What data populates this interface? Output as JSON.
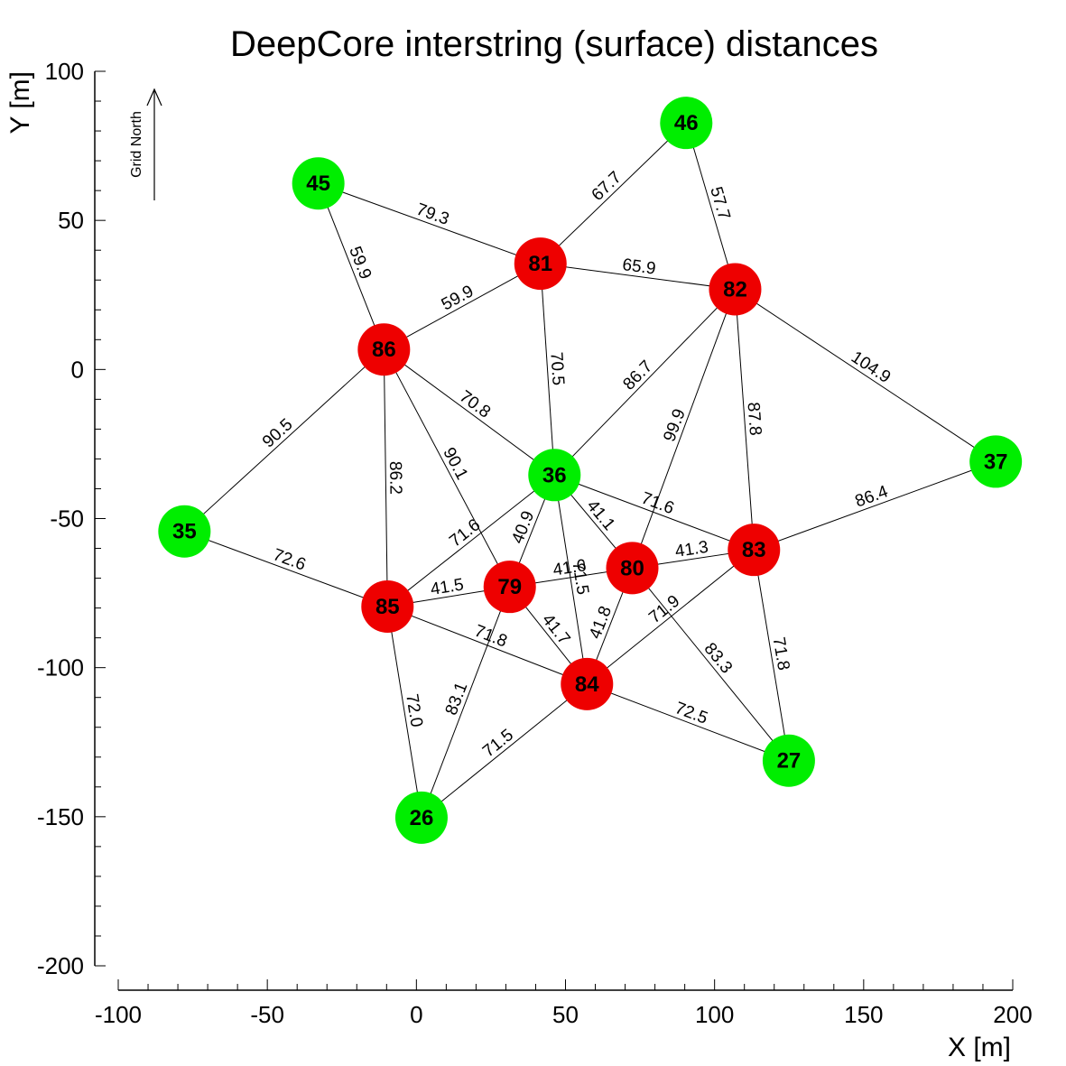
{
  "chart_data": {
    "type": "scatter",
    "title": "DeepCore interstring (surface) distances",
    "xlabel": "X [m]",
    "ylabel": "Y [m]",
    "xlim": [
      -100,
      200
    ],
    "ylim": [
      -200,
      100
    ],
    "xticks": [
      -100,
      -50,
      0,
      50,
      100,
      150,
      200
    ],
    "xtick_labels": [
      "-100",
      "-50",
      "0",
      "50",
      "100",
      "150",
      "200"
    ],
    "yticks": [
      100,
      50,
      0,
      -50,
      -100,
      -150,
      -200
    ],
    "ytick_labels": [
      "100",
      "50",
      "0",
      "-50",
      "-100",
      "-150",
      "-200"
    ],
    "minor_step": 10,
    "grid": false,
    "north_arrow_label": "Grid North",
    "colors": {
      "green": "#00ee00",
      "red": "#ee0000",
      "line": "#000000"
    },
    "nodes": [
      {
        "id": "26",
        "x": 1.7,
        "y": -150.3,
        "color": "green"
      },
      {
        "id": "27",
        "x": 124.9,
        "y": -131.2,
        "color": "green"
      },
      {
        "id": "35",
        "x": -77.8,
        "y": -54.3,
        "color": "green"
      },
      {
        "id": "36",
        "x": 46.3,
        "y": -35.4,
        "color": "green"
      },
      {
        "id": "37",
        "x": 194.3,
        "y": -30.9,
        "color": "green"
      },
      {
        "id": "45",
        "x": -32.9,
        "y": 62.4,
        "color": "green"
      },
      {
        "id": "46",
        "x": 90.5,
        "y": 82.7,
        "color": "green"
      },
      {
        "id": "79",
        "x": 31.3,
        "y": -72.9,
        "color": "red"
      },
      {
        "id": "80",
        "x": 72.4,
        "y": -66.6,
        "color": "red"
      },
      {
        "id": "81",
        "x": 41.6,
        "y": 35.5,
        "color": "red"
      },
      {
        "id": "82",
        "x": 106.9,
        "y": 26.9,
        "color": "red"
      },
      {
        "id": "83",
        "x": 113.2,
        "y": -60.5,
        "color": "red"
      },
      {
        "id": "84",
        "x": 57.2,
        "y": -105.5,
        "color": "red"
      },
      {
        "id": "85",
        "x": -9.7,
        "y": -79.5,
        "color": "red"
      },
      {
        "id": "86",
        "x": -10.9,
        "y": 6.7,
        "color": "red"
      }
    ],
    "edges": [
      {
        "from": "45",
        "to": "81",
        "label": "79.3"
      },
      {
        "from": "45",
        "to": "86",
        "label": "59.9"
      },
      {
        "from": "46",
        "to": "81",
        "label": "67.7"
      },
      {
        "from": "46",
        "to": "82",
        "label": "57.7"
      },
      {
        "from": "81",
        "to": "82",
        "label": "65.9"
      },
      {
        "from": "81",
        "to": "86",
        "label": "59.9"
      },
      {
        "from": "81",
        "to": "36",
        "label": "70.5"
      },
      {
        "from": "82",
        "to": "36",
        "label": "86.7"
      },
      {
        "from": "82",
        "to": "80",
        "label": "99.9"
      },
      {
        "from": "82",
        "to": "83",
        "label": "87.8"
      },
      {
        "from": "82",
        "to": "37",
        "label": "104.9"
      },
      {
        "from": "86",
        "to": "35",
        "label": "90.5"
      },
      {
        "from": "86",
        "to": "36",
        "label": "70.8"
      },
      {
        "from": "86",
        "to": "79",
        "label": "90.1"
      },
      {
        "from": "86",
        "to": "85",
        "label": "86.2"
      },
      {
        "from": "36",
        "to": "85",
        "label": "71.6"
      },
      {
        "from": "36",
        "to": "79",
        "label": "40.9"
      },
      {
        "from": "36",
        "to": "84",
        "label": "71.5"
      },
      {
        "from": "36",
        "to": "80",
        "label": "41.1"
      },
      {
        "from": "36",
        "to": "83",
        "label": "71.6"
      },
      {
        "from": "37",
        "to": "83",
        "label": "86.4"
      },
      {
        "from": "35",
        "to": "85",
        "label": "72.6"
      },
      {
        "from": "85",
        "to": "79",
        "label": "41.5"
      },
      {
        "from": "85",
        "to": "84",
        "label": "71.8"
      },
      {
        "from": "85",
        "to": "26",
        "label": "72.0"
      },
      {
        "from": "79",
        "to": "80",
        "label": "41.6"
      },
      {
        "from": "79",
        "to": "84",
        "label": "41.7"
      },
      {
        "from": "79",
        "to": "26",
        "label": "83.1"
      },
      {
        "from": "80",
        "to": "83",
        "label": "41.3"
      },
      {
        "from": "80",
        "to": "84",
        "label": "41.8"
      },
      {
        "from": "80",
        "to": "27",
        "label": "83.3"
      },
      {
        "from": "83",
        "to": "84",
        "label": "71.9"
      },
      {
        "from": "83",
        "to": "27",
        "label": "71.8"
      },
      {
        "from": "84",
        "to": "26",
        "label": "71.5"
      },
      {
        "from": "84",
        "to": "27",
        "label": "72.5"
      }
    ]
  }
}
